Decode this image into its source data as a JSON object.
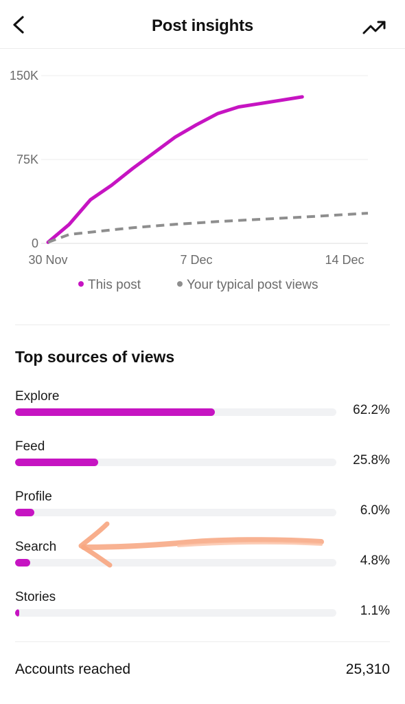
{
  "header": {
    "title": "Post insights",
    "back_icon": "chevron-left-icon",
    "trend_icon": "trending-up-icon"
  },
  "chart_data": {
    "type": "line",
    "x_ticks": [
      "30 Nov",
      "7 Dec",
      "14 Dec"
    ],
    "y_ticks": [
      "0",
      "75K",
      "150K"
    ],
    "ylim": [
      0,
      150000
    ],
    "x": [
      0,
      1,
      2,
      3,
      4,
      5,
      6,
      7,
      8,
      9,
      10,
      11,
      12,
      13,
      14
    ],
    "series": [
      {
        "name": "This post",
        "color": "#c614c2",
        "style": "solid",
        "x": [
          0,
          1,
          2,
          3,
          4,
          5,
          6,
          7,
          8,
          9,
          10,
          11,
          12
        ],
        "values": [
          1000,
          17000,
          39000,
          52000,
          67000,
          81000,
          95000,
          106000,
          116000,
          122000,
          125000,
          128000,
          131000
        ]
      },
      {
        "name": "Your typical post views",
        "color": "#8e8e8e",
        "style": "dashed",
        "x": [
          0,
          1,
          2,
          4,
          6,
          8,
          10,
          12,
          14
        ],
        "values": [
          1000,
          8000,
          10000,
          14000,
          17000,
          19500,
          21500,
          23500,
          27000
        ]
      }
    ],
    "grid": true,
    "legend": "bottom-center"
  },
  "sources": {
    "title": "Top sources of views",
    "accent_color": "#c614c2",
    "items": [
      {
        "label": "Explore",
        "percent": "62.2%",
        "fraction": 0.622
      },
      {
        "label": "Feed",
        "percent": "25.8%",
        "fraction": 0.258
      },
      {
        "label": "Profile",
        "percent": "6.0%",
        "fraction": 0.06
      },
      {
        "label": "Search",
        "percent": "4.8%",
        "fraction": 0.048
      },
      {
        "label": "Stories",
        "percent": "1.1%",
        "fraction": 0.011
      }
    ]
  },
  "reached": {
    "label": "Accounts reached",
    "value": "25,310"
  },
  "annotation": {
    "icon": "hand-drawn-arrow-icon",
    "color": "#f7a57f"
  }
}
